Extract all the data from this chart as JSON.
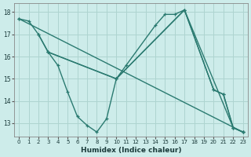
{
  "xlabel": "Humidex (Indice chaleur)",
  "background_color": "#cdecea",
  "grid_color": "#aed4d0",
  "line_color": "#2a7a70",
  "xlim": [
    -0.5,
    23.5
  ],
  "ylim": [
    12.4,
    18.4
  ],
  "yticks": [
    13,
    14,
    15,
    16,
    17,
    18
  ],
  "xticks": [
    0,
    1,
    2,
    3,
    4,
    5,
    6,
    7,
    8,
    9,
    10,
    11,
    12,
    13,
    14,
    15,
    16,
    17,
    18,
    19,
    20,
    21,
    22,
    23
  ],
  "lines": [
    {
      "x": [
        0,
        1,
        2,
        3,
        4,
        5,
        6,
        7,
        8,
        9,
        10,
        11,
        14,
        15,
        16,
        17,
        20,
        21,
        22,
        23
      ],
      "y": [
        17.7,
        17.6,
        17.0,
        16.2,
        15.6,
        14.4,
        13.3,
        12.9,
        12.6,
        13.2,
        15.0,
        15.6,
        17.4,
        17.9,
        17.9,
        18.1,
        14.5,
        14.3,
        12.8,
        12.6
      ]
    },
    {
      "x": [
        0,
        23
      ],
      "y": [
        17.7,
        12.6
      ]
    },
    {
      "x": [
        2,
        3,
        10,
        17,
        22,
        23
      ],
      "y": [
        17.0,
        16.2,
        15.0,
        18.1,
        12.8,
        12.6
      ]
    },
    {
      "x": [
        3,
        10,
        17,
        20,
        21,
        22,
        23
      ],
      "y": [
        16.2,
        15.0,
        18.1,
        14.5,
        14.3,
        12.8,
        12.6
      ]
    }
  ]
}
